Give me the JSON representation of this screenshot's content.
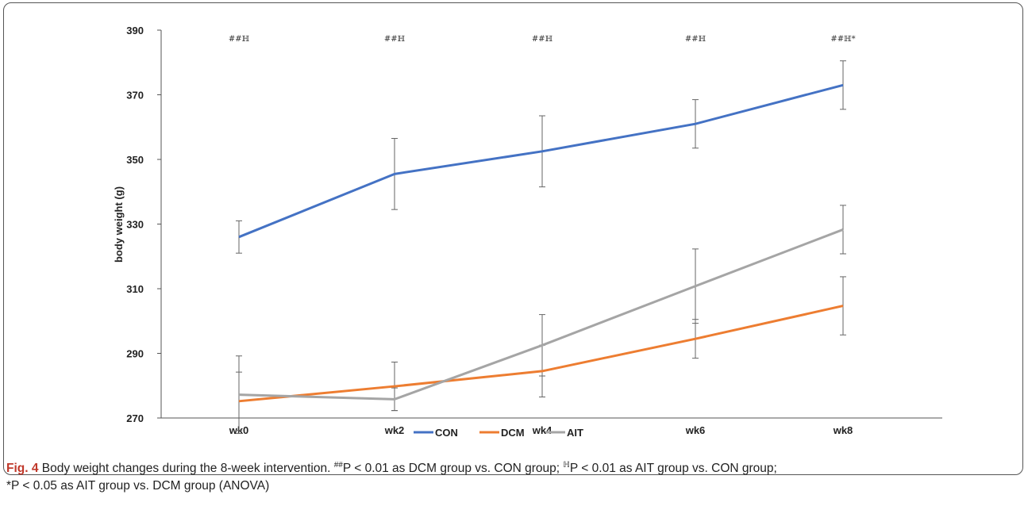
{
  "chart_data": {
    "type": "line",
    "title": "",
    "xlabel": "",
    "ylabel": "body weight (g)",
    "categories": [
      "wk0",
      "wk2",
      "wk4",
      "wk6",
      "wk8"
    ],
    "ylim": [
      270,
      390
    ],
    "yticks": [
      270,
      290,
      310,
      330,
      350,
      370,
      390
    ],
    "grid": false,
    "legend_position": "bottom-center",
    "series": [
      {
        "name": "CON",
        "color": "#4472c4",
        "values": [
          326,
          345.5,
          352.5,
          361,
          373
        ],
        "error": [
          5,
          11,
          11,
          7.5,
          7.5
        ]
      },
      {
        "name": "DCM",
        "color": "#ed7d31",
        "values": [
          275.2,
          279.8,
          284.5,
          294.5,
          304.7
        ],
        "error": [
          9,
          7.5,
          8,
          6,
          9
        ]
      },
      {
        "name": "AIT",
        "color": "#a5a5a5",
        "values": [
          277.2,
          275.8,
          292.5,
          310.8,
          328.3
        ],
        "error": [
          12,
          3.5,
          9.5,
          11.5,
          7.5
        ]
      }
    ],
    "annotations": [
      "##ℍ",
      "##ℍ",
      "##ℍ",
      "##ℍ",
      "##ℍ*"
    ]
  },
  "caption": {
    "label": "Fig. 4",
    "text": "Body weight changes during the 8-week intervention.",
    "note1_sup": "##",
    "note1_text": "P < 0.01 as DCM group vs. CON group;",
    "note2_sup": "ℍ",
    "note2_text": "P < 0.01 as AIT group vs. CON group;",
    "note3_text": "*P < 0.05 as AIT group vs. DCM group (ANOVA)"
  }
}
